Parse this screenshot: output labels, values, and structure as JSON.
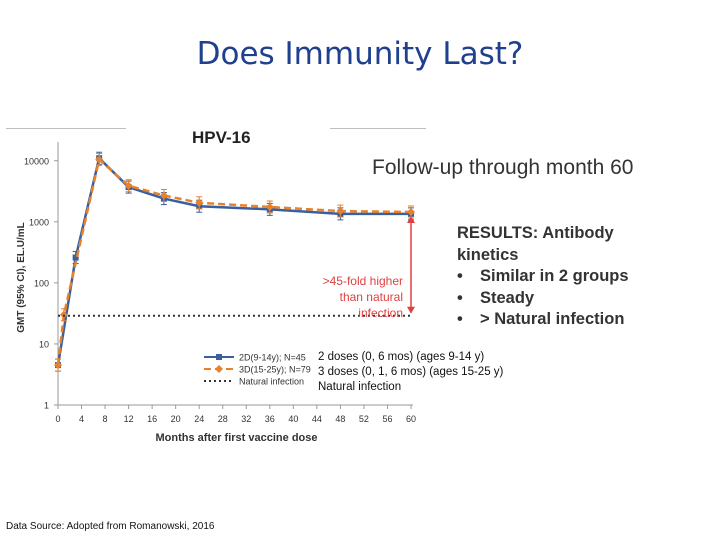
{
  "slide": {
    "title": "Does Immunity Last?",
    "followup": "Follow-up through month 60",
    "results": {
      "heading": "RESULTS: Antibody kinetics",
      "bullets": [
        "Similar in 2 groups",
        "Steady",
        "> Natural infection"
      ]
    },
    "group_notes": [
      "2 doses (0, 6 mos)   (ages 9-14 y)",
      "3 doses (0, 1, 6 mos) (ages 15-25 y)",
      "Natural infection"
    ],
    "source": "Data Source: Adopted from Romanowski, 2016"
  },
  "chart_data": {
    "type": "line",
    "title": "HPV-16",
    "xlabel": "Months after first vaccine dose",
    "ylabel": "GMT (95% CI), EL.U/mL",
    "y_scale": "log",
    "ylim": [
      1,
      15000
    ],
    "xlim": [
      0,
      60
    ],
    "x_ticks": [
      0,
      4,
      8,
      12,
      16,
      20,
      24,
      28,
      32,
      36,
      40,
      44,
      48,
      52,
      56,
      60
    ],
    "y_ticks": [
      1,
      10,
      100,
      1000,
      10000
    ],
    "y_tick_labels": [
      "1",
      "10",
      "100",
      "1000",
      "10000"
    ],
    "series": [
      {
        "name": "2D(9-14y); N=45",
        "color": "#3a5f9e",
        "style": "solid",
        "marker": "square",
        "x": [
          0,
          3,
          7,
          12,
          18,
          24,
          36,
          48,
          60
        ],
        "y": [
          4.5,
          260,
          11000,
          3700,
          2400,
          1800,
          1600,
          1350,
          1350
        ]
      },
      {
        "name": "3D(15-25y); N=79",
        "color": "#e8822a",
        "style": "dashed",
        "marker": "diamond",
        "x": [
          0,
          1,
          7,
          12,
          18,
          24,
          36,
          48,
          60
        ],
        "y": [
          4.5,
          30,
          10500,
          3900,
          2700,
          2050,
          1750,
          1500,
          1450
        ]
      },
      {
        "name": "Natural infection",
        "color": "#333333",
        "style": "dotted",
        "x": [
          0,
          60
        ],
        "y": [
          29,
          29
        ]
      }
    ],
    "annotation": {
      "text": [
        ">45-fold higher",
        "than natural",
        "infection"
      ],
      "color": "#e04040"
    },
    "legend_position": "bottom-center"
  }
}
